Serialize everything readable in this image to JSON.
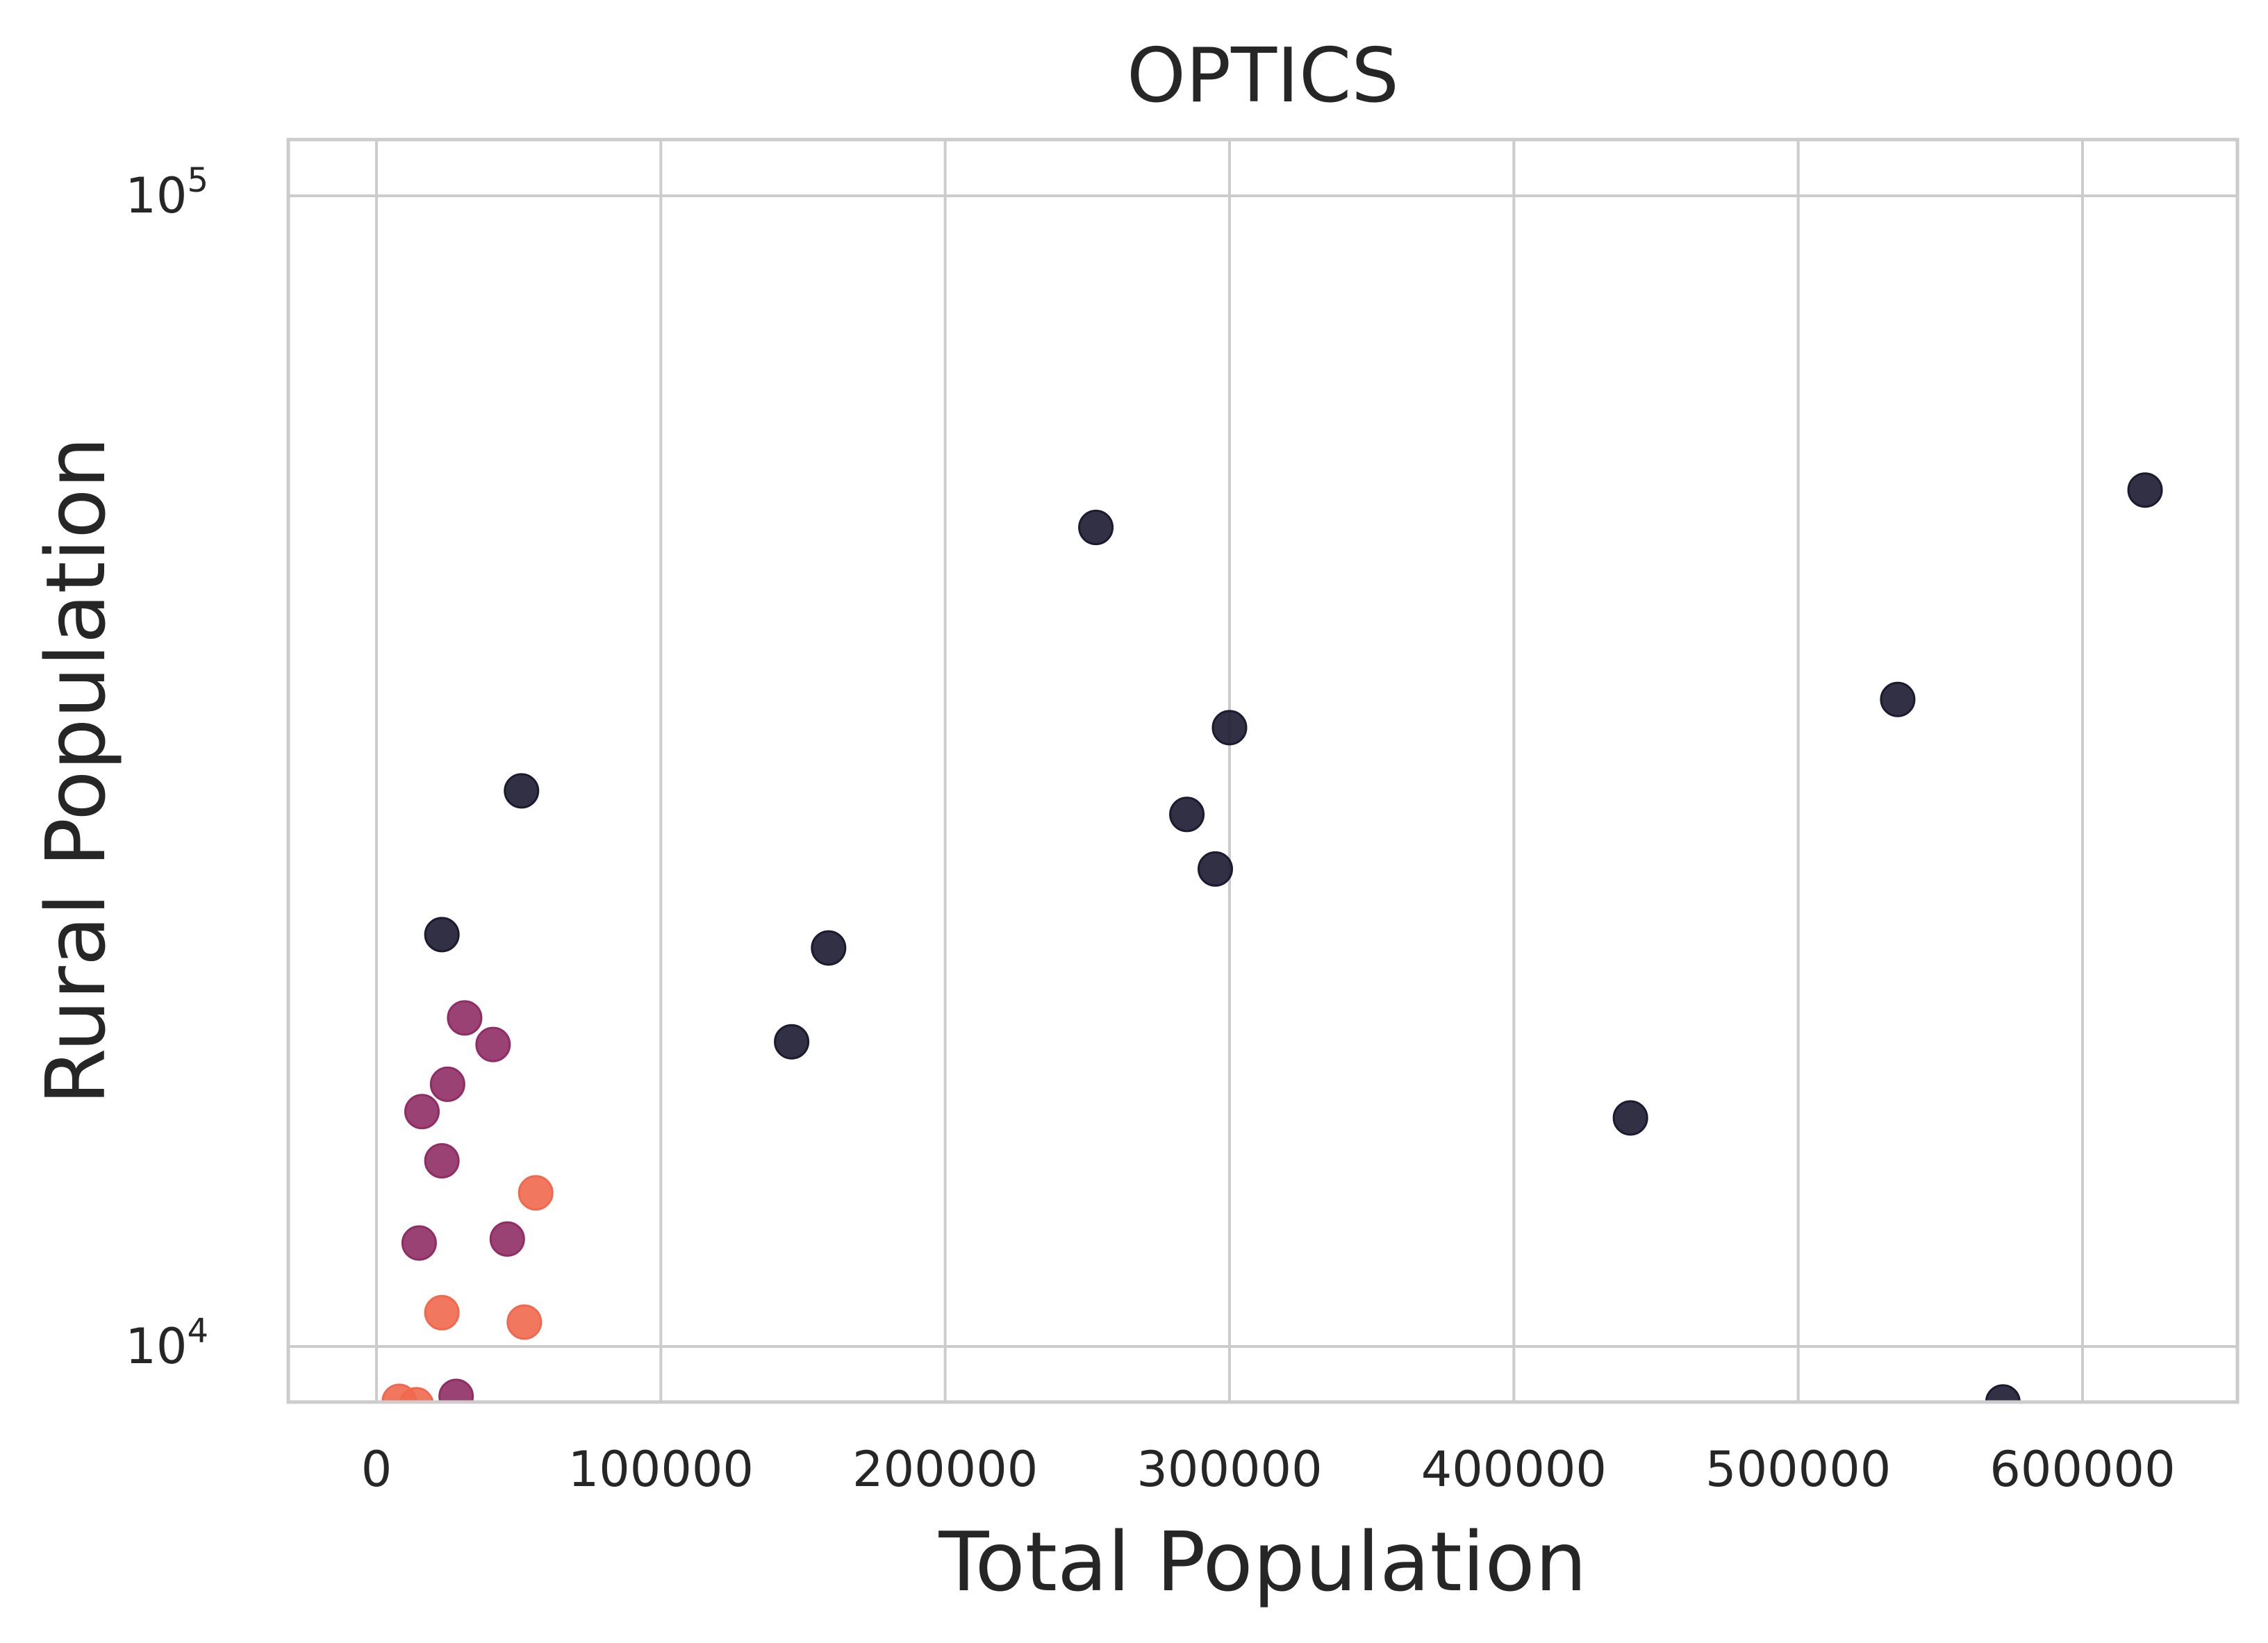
{
  "chart_data": {
    "type": "scatter",
    "title": "OPTICS",
    "xlabel": "Total Population",
    "ylabel": "Rural Population",
    "xscale": "linear",
    "yscale": "log",
    "xlim": [
      -30000,
      650000
    ],
    "ylim": [
      8900,
      112000
    ],
    "grid": true,
    "x_ticks": [
      {
        "value": 0,
        "label": "0"
      },
      {
        "value": 100000,
        "label": "100000"
      },
      {
        "value": 200000,
        "label": "200000"
      },
      {
        "value": 300000,
        "label": "300000"
      },
      {
        "value": 400000,
        "label": "400000"
      },
      {
        "value": 500000,
        "label": "500000"
      },
      {
        "value": 600000,
        "label": "600000"
      }
    ],
    "y_ticks": [
      {
        "value": 10000,
        "base": "10",
        "exp": "4"
      },
      {
        "value": 100000,
        "base": "10",
        "exp": "5"
      }
    ],
    "series": [
      {
        "color": "#1b1a30",
        "points": [
          {
            "x": 253000,
            "y": 51500
          },
          {
            "x": 622000,
            "y": 55500
          },
          {
            "x": 535000,
            "y": 36500
          },
          {
            "x": 300000,
            "y": 34500
          },
          {
            "x": 51000,
            "y": 30400
          },
          {
            "x": 285000,
            "y": 29000
          },
          {
            "x": 295000,
            "y": 26000
          },
          {
            "x": 23000,
            "y": 22800
          },
          {
            "x": 159000,
            "y": 22200
          },
          {
            "x": 146000,
            "y": 18400
          },
          {
            "x": 441000,
            "y": 15800
          },
          {
            "x": 572000,
            "y": 8950
          }
        ]
      },
      {
        "color": "#8f2d64",
        "points": [
          {
            "x": 31000,
            "y": 19300
          },
          {
            "x": 41000,
            "y": 18300
          },
          {
            "x": 25000,
            "y": 16900
          },
          {
            "x": 16000,
            "y": 16000
          },
          {
            "x": 23000,
            "y": 14500
          },
          {
            "x": 15000,
            "y": 12300
          },
          {
            "x": 46000,
            "y": 12400
          },
          {
            "x": 28000,
            "y": 9050
          }
        ]
      },
      {
        "color": "#f0694e",
        "points": [
          {
            "x": 56000,
            "y": 13600
          },
          {
            "x": 23000,
            "y": 10700
          },
          {
            "x": 52000,
            "y": 10500
          },
          {
            "x": 8000,
            "y": 8960
          },
          {
            "x": 14000,
            "y": 8900
          }
        ]
      }
    ]
  }
}
